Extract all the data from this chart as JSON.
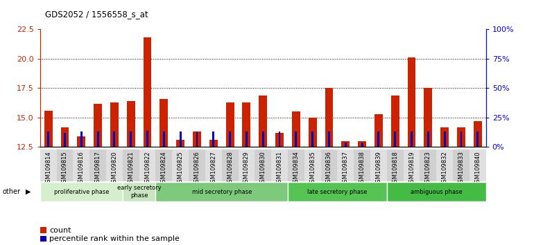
{
  "title": "GDS2052 / 1556558_s_at",
  "samples": [
    "GSM109814",
    "GSM109815",
    "GSM109816",
    "GSM109817",
    "GSM109820",
    "GSM109821",
    "GSM109822",
    "GSM109824",
    "GSM109825",
    "GSM109826",
    "GSM109827",
    "GSM109828",
    "GSM109829",
    "GSM109830",
    "GSM109831",
    "GSM109834",
    "GSM109835",
    "GSM109836",
    "GSM109837",
    "GSM109838",
    "GSM109839",
    "GSM109818",
    "GSM109819",
    "GSM109823",
    "GSM109832",
    "GSM109833",
    "GSM109840"
  ],
  "count": [
    15.6,
    14.2,
    13.4,
    16.2,
    16.3,
    16.4,
    21.8,
    16.6,
    13.1,
    13.8,
    13.1,
    16.3,
    16.3,
    16.9,
    13.7,
    15.5,
    15.0,
    17.5,
    13.0,
    13.0,
    15.3,
    16.9,
    20.1,
    17.5,
    14.2,
    14.2,
    14.7
  ],
  "percentile": [
    13,
    12,
    13,
    13,
    13,
    13,
    14,
    13,
    13,
    13,
    13,
    13,
    13,
    13,
    13,
    13,
    13,
    13,
    4,
    4,
    13,
    13,
    13,
    13,
    13,
    13,
    13
  ],
  "ylim_left": [
    12.5,
    22.5
  ],
  "ylim_right": [
    0,
    100
  ],
  "yticks_left": [
    12.5,
    15.0,
    17.5,
    20.0,
    22.5
  ],
  "yticks_right": [
    0,
    25,
    50,
    75,
    100
  ],
  "ytick_labels_right": [
    "0%",
    "25%",
    "50%",
    "75%",
    "100%"
  ],
  "phases": [
    {
      "label": "proliferative phase",
      "start": 0,
      "end": 5,
      "color": "#d5eecc"
    },
    {
      "label": "early secretory\nphase",
      "start": 5,
      "end": 7,
      "color": "#c8e6c0"
    },
    {
      "label": "mid secretory phase",
      "start": 7,
      "end": 15,
      "color": "#7dca7d"
    },
    {
      "label": "late secretory phase",
      "start": 15,
      "end": 21,
      "color": "#55c455"
    },
    {
      "label": "ambiguous phase",
      "start": 21,
      "end": 27,
      "color": "#44bb44"
    }
  ],
  "bar_color_red": "#cc2200",
  "bar_color_blue": "#0000bb",
  "red_bar_width": 0.5,
  "blue_bar_width": 0.12,
  "plot_bg": "#ffffff",
  "fig_bg": "#ffffff",
  "xtick_bg_even": "#e0e0e0",
  "xtick_bg_odd": "#d0d0d0",
  "grid_color": "#000000",
  "grid_style": "dotted"
}
